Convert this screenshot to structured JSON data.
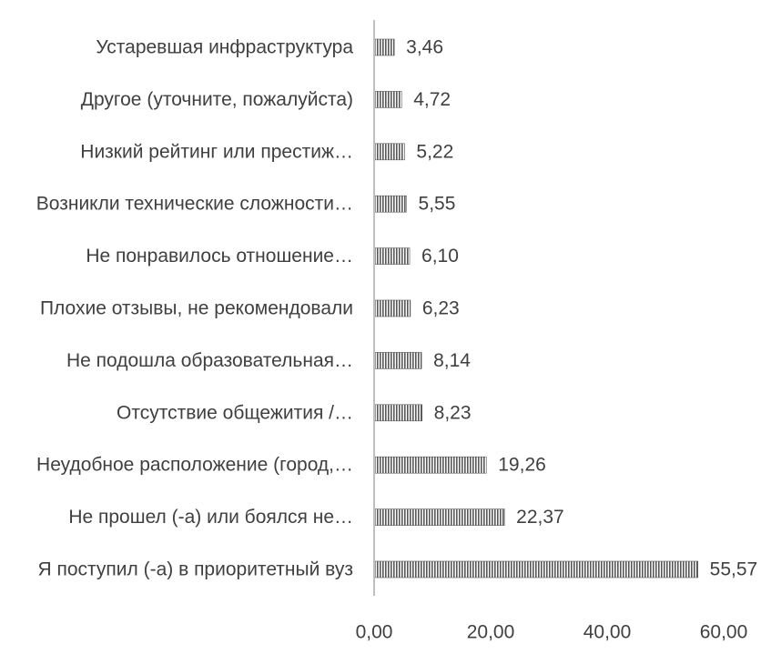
{
  "chart_data": {
    "type": "bar",
    "orientation": "horizontal",
    "categories": [
      "Я поступил (-а) в приоритетный вуз",
      "Не прошел (-а) или боялся не…",
      "Неудобное расположение (город,…",
      "Отсутствие общежития /…",
      "Не подошла образовательная…",
      "Плохие отзывы, не рекомендовали",
      "Не понравилось отношение…",
      "Возникли технические сложности…",
      "Низкий рейтинг или престиж…",
      "Другое (уточните, пожалуйста)",
      "Устаревшая инфраструктура"
    ],
    "values": [
      55.57,
      22.37,
      19.26,
      8.23,
      8.14,
      6.23,
      6.1,
      5.55,
      5.22,
      4.72,
      3.46
    ],
    "value_labels": [
      "55,57",
      "22,37",
      "19,26",
      "8,23",
      "8,14",
      "6,23",
      "6,10",
      "5,55",
      "5,22",
      "4,72",
      "3,46"
    ],
    "x_ticks": [
      0,
      20,
      40,
      60
    ],
    "x_tick_labels": [
      "0,00",
      "20,00",
      "40,00",
      "60,00"
    ],
    "xlim": [
      0,
      60
    ],
    "title": "",
    "xlabel": "",
    "ylabel": "",
    "grid": false,
    "legend": "none",
    "bar_pattern": "vertical-hatch",
    "colors": {
      "bar_dark": "#595959",
      "bar_light": "#ffffff",
      "axis": "#bfbfbf",
      "text": "#404040"
    }
  }
}
